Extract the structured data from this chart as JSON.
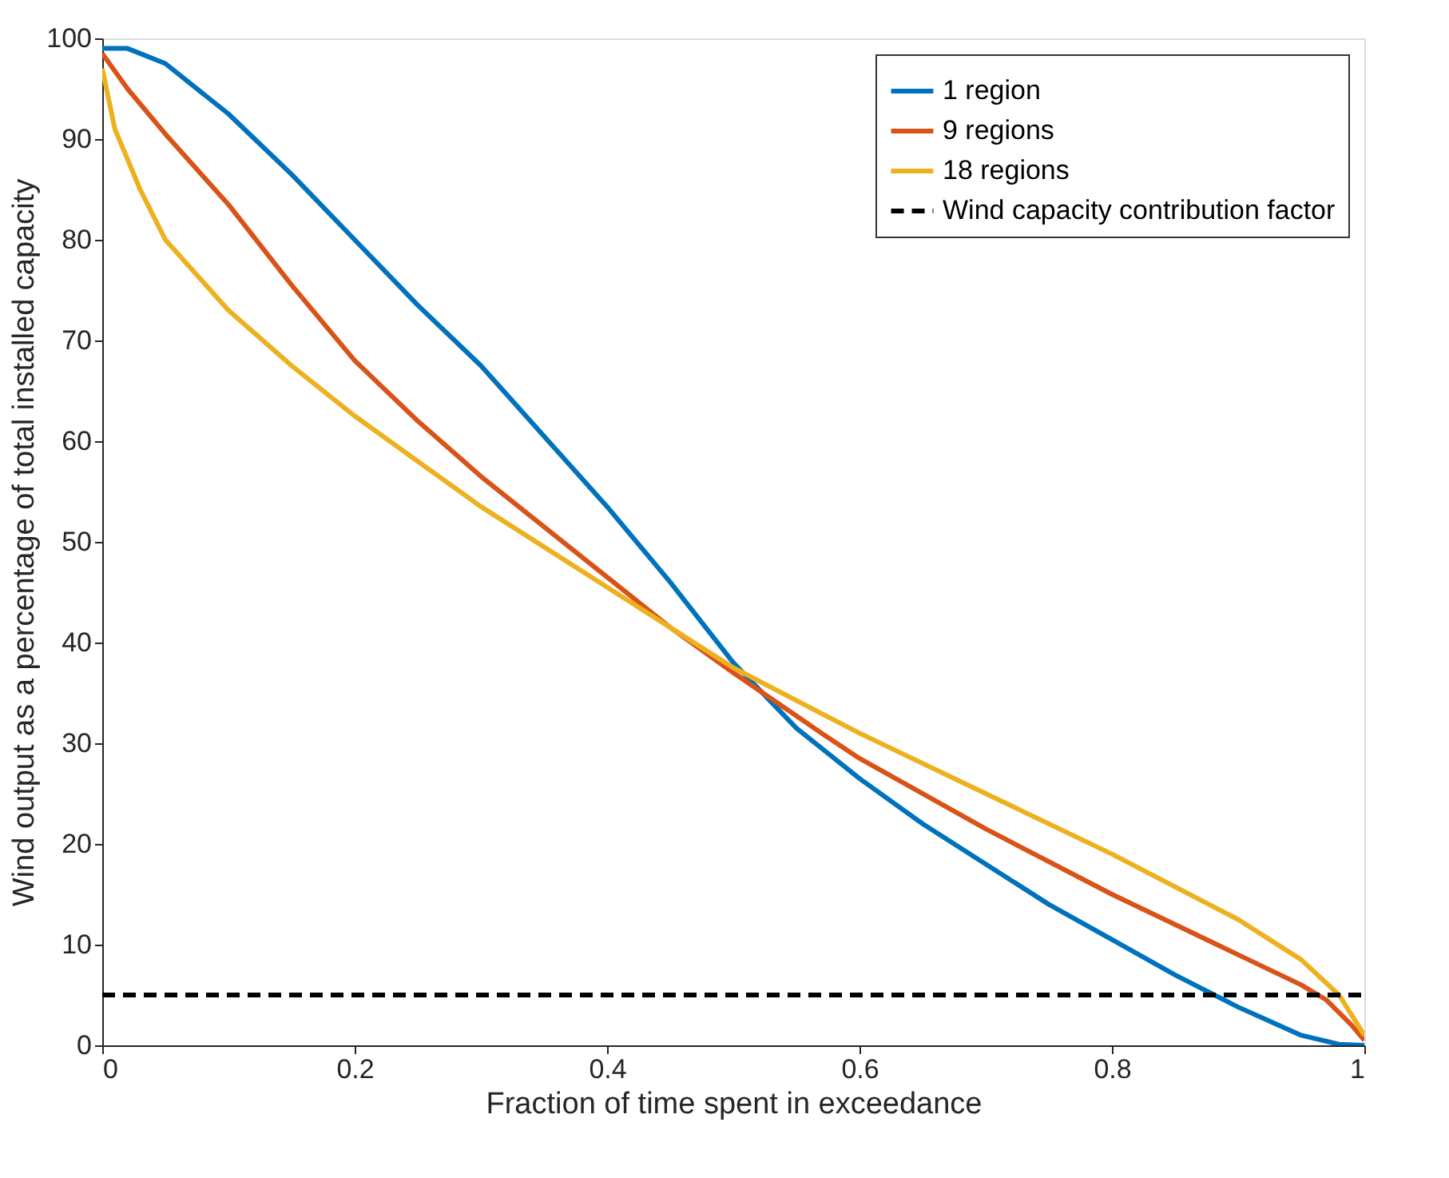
{
  "chart_data": {
    "type": "line",
    "xlabel": "Fraction of time spent in exceedance",
    "ylabel": "Wind output as a percentage of total installed capacity",
    "xlim": [
      0,
      1
    ],
    "ylim": [
      0,
      100
    ],
    "xticks": [
      0,
      0.2,
      0.4,
      0.6,
      0.8,
      1
    ],
    "yticks": [
      0,
      10,
      20,
      30,
      40,
      50,
      60,
      70,
      80,
      90,
      100
    ],
    "grid": false,
    "legend": "top right",
    "line_style": "solid",
    "marker": "none",
    "series": [
      {
        "name": "1 region",
        "color": "#0072bd",
        "x": [
          0,
          0.02,
          0.05,
          0.1,
          0.15,
          0.2,
          0.25,
          0.3,
          0.35,
          0.4,
          0.45,
          0.5,
          0.55,
          0.6,
          0.65,
          0.7,
          0.75,
          0.8,
          0.85,
          0.9,
          0.95,
          0.98,
          1
        ],
        "values": [
          99,
          99,
          97.5,
          92.5,
          86.5,
          80,
          73.5,
          67.5,
          60.5,
          53.5,
          46,
          38,
          31.5,
          26.5,
          22,
          18,
          14,
          10.5,
          7,
          3.8,
          1,
          0.1,
          0
        ]
      },
      {
        "name": "9 regions",
        "color": "#d95319",
        "x": [
          0,
          0.02,
          0.05,
          0.1,
          0.15,
          0.2,
          0.25,
          0.3,
          0.35,
          0.4,
          0.45,
          0.5,
          0.57,
          0.6,
          0.7,
          0.8,
          0.9,
          0.95,
          0.97,
          0.99,
          1
        ],
        "values": [
          98.5,
          95,
          90.5,
          83.5,
          75.5,
          68,
          62,
          56.5,
          51.5,
          46.5,
          41.5,
          37,
          31,
          28.5,
          21.5,
          15,
          9,
          6,
          4.5,
          2,
          0.5
        ]
      },
      {
        "name": "18 regions",
        "color": "#edb120",
        "x": [
          0,
          0.01,
          0.03,
          0.05,
          0.1,
          0.15,
          0.2,
          0.3,
          0.4,
          0.45,
          0.5,
          0.6,
          0.7,
          0.8,
          0.9,
          0.95,
          0.98,
          1
        ],
        "values": [
          97,
          91,
          85,
          80,
          73,
          67.5,
          62.5,
          53.5,
          45.5,
          41.5,
          37.5,
          31,
          25,
          19,
          12.5,
          8.5,
          5,
          1
        ]
      }
    ],
    "ref_lines": [
      {
        "axis": "y",
        "value": 5,
        "label": "Wind capacity contribution factor",
        "color": "#000000",
        "line_style": "dashed"
      }
    ]
  }
}
